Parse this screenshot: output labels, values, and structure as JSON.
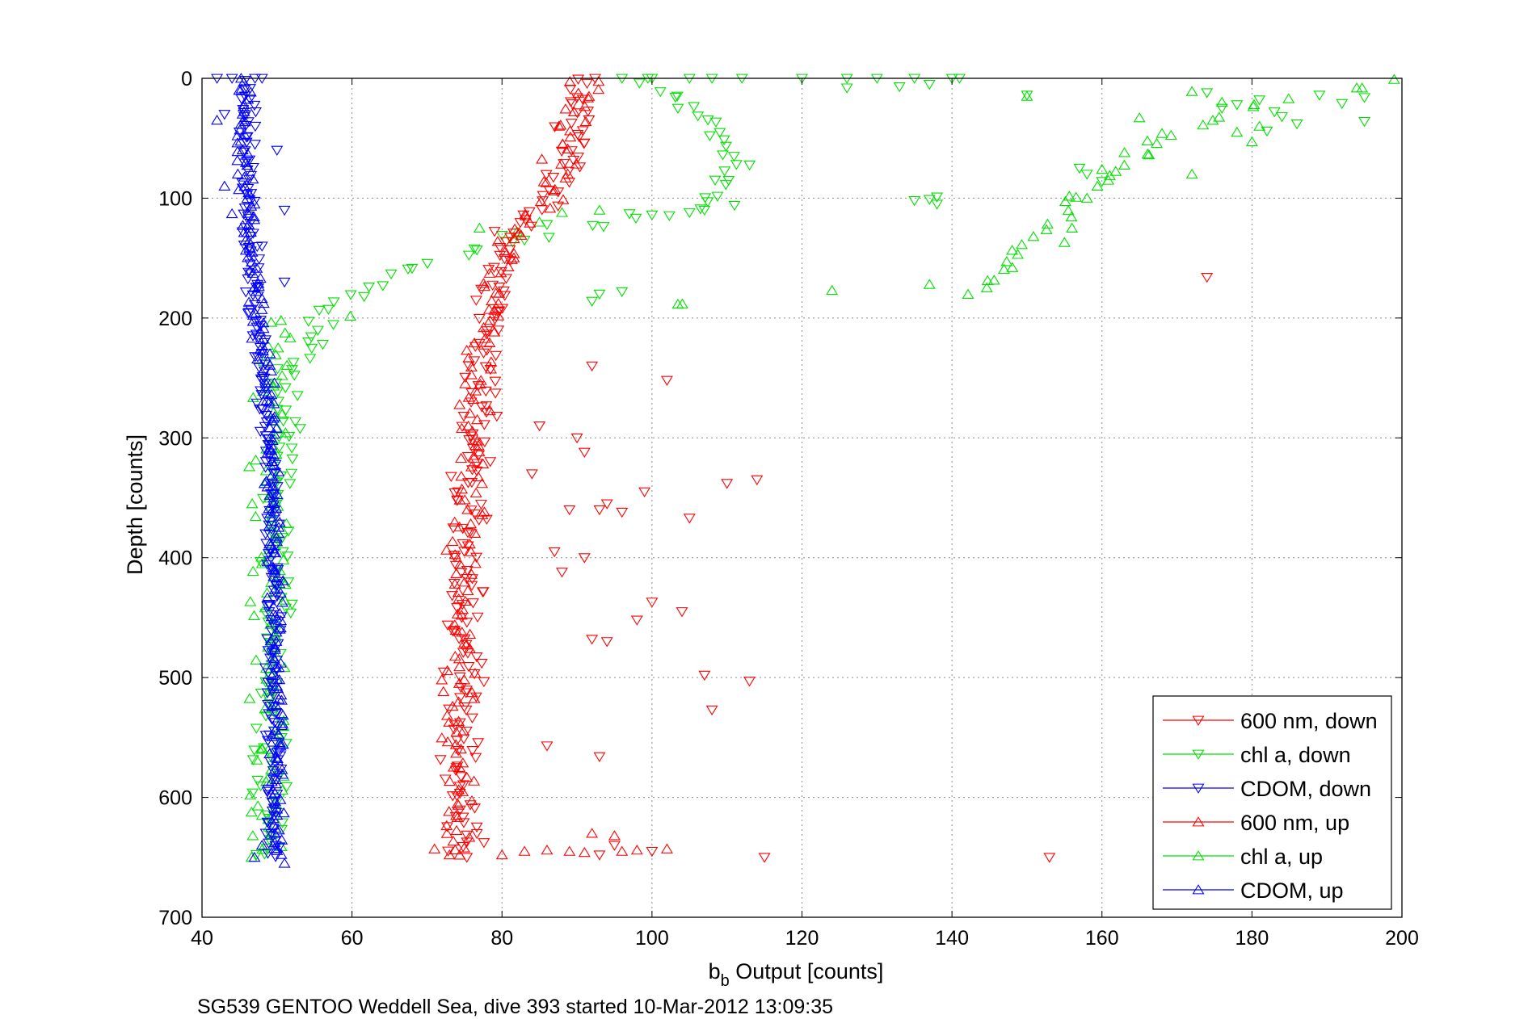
{
  "chart_data": {
    "type": "scatter",
    "title": "",
    "xlabel_main": "b",
    "xlabel_sub": "b",
    "xlabel_rest": " Output [counts]",
    "ylabel": "Depth [counts]",
    "caption": "SG539 GENTOO Weddell Sea, dive 393 started 10-Mar-2012 13:09:35",
    "xlim": [
      40,
      200
    ],
    "ylim": [
      0,
      700
    ],
    "y_reversed": true,
    "x_ticks": [
      40,
      60,
      80,
      100,
      120,
      140,
      160,
      180,
      200
    ],
    "y_ticks": [
      0,
      100,
      200,
      300,
      400,
      500,
      600,
      700
    ],
    "grid": true,
    "legend_position": "bottom-right",
    "colors": {
      "red": "#ff0000",
      "green": "#00e000",
      "blue": "#0000ff"
    },
    "series": [
      {
        "name": "600 nm, down",
        "color": "#ff0000",
        "marker": "triangle-down",
        "profile": [
          [
            0,
            90.5
          ],
          [
            20,
            90
          ],
          [
            50,
            89.5
          ],
          [
            80,
            88
          ],
          [
            100,
            86
          ],
          [
            120,
            82
          ],
          [
            150,
            80
          ],
          [
            200,
            79
          ],
          [
            250,
            77.5
          ],
          [
            300,
            76.5
          ],
          [
            350,
            75.5
          ],
          [
            400,
            75.5
          ],
          [
            450,
            75
          ],
          [
            500,
            75
          ],
          [
            550,
            74.5
          ],
          [
            600,
            75
          ],
          [
            650,
            75
          ]
        ],
        "spread": 2.2,
        "count": 200,
        "outliers": [
          [
            90,
            300
          ],
          [
            91,
            312
          ],
          [
            102,
            252
          ],
          [
            110,
            338
          ],
          [
            114,
            335
          ],
          [
            99,
            345
          ],
          [
            94,
            355
          ],
          [
            96,
            362
          ],
          [
            105,
            367
          ],
          [
            93,
            360
          ],
          [
            91,
            400
          ],
          [
            100,
            437
          ],
          [
            104,
            445
          ],
          [
            98,
            452
          ],
          [
            92,
            468
          ],
          [
            94,
            470
          ],
          [
            107,
            498
          ],
          [
            113,
            503
          ],
          [
            108,
            527
          ],
          [
            93,
            566
          ],
          [
            86,
            557
          ],
          [
            174,
            166
          ],
          [
            115,
            650
          ],
          [
            153,
            650
          ],
          [
            95,
            640
          ],
          [
            93,
            648
          ],
          [
            100,
            645
          ],
          [
            89,
            360
          ],
          [
            88,
            412
          ],
          [
            87,
            395
          ],
          [
            85,
            290
          ],
          [
            84,
            330
          ],
          [
            92,
            240
          ]
        ]
      },
      {
        "name": "chl a, down",
        "color": "#00e000",
        "marker": "triangle-down",
        "profile": [
          [
            0,
            100
          ],
          [
            40,
            108
          ],
          [
            80,
            111
          ],
          [
            100,
            108
          ],
          [
            110,
            105
          ],
          [
            120,
            95
          ],
          [
            140,
            80
          ],
          [
            160,
            68
          ],
          [
            175,
            62
          ],
          [
            190,
            57
          ],
          [
            200,
            56
          ],
          [
            220,
            55
          ],
          [
            240,
            52
          ],
          [
            260,
            51
          ],
          [
            280,
            50.5
          ],
          [
            350,
            50
          ],
          [
            450,
            50
          ],
          [
            550,
            49.5
          ],
          [
            650,
            49
          ]
        ],
        "spread": 2.0,
        "count": 150,
        "outliers": [
          [
            96,
            0
          ],
          [
            100,
            0
          ],
          [
            105,
            0
          ],
          [
            108,
            0
          ],
          [
            112,
            0
          ],
          [
            120,
            0
          ],
          [
            126,
            0
          ],
          [
            130,
            0
          ],
          [
            135,
            0
          ],
          [
            140,
            0
          ],
          [
            141,
            0
          ],
          [
            126,
            8
          ],
          [
            137,
            5
          ],
          [
            133,
            7
          ],
          [
            150,
            14
          ],
          [
            174,
            12
          ],
          [
            189,
            14
          ],
          [
            195,
            16
          ],
          [
            178,
            22
          ],
          [
            181,
            18
          ],
          [
            176,
            25
          ],
          [
            183,
            28
          ],
          [
            192,
            21
          ],
          [
            184,
            32
          ],
          [
            195,
            36
          ],
          [
            186,
            38
          ],
          [
            182,
            44
          ],
          [
            160,
            86
          ],
          [
            157,
            75
          ],
          [
            158,
            80
          ],
          [
            135,
            102
          ],
          [
            137,
            101
          ],
          [
            138,
            105
          ],
          [
            138,
            99
          ],
          [
            111,
            106
          ],
          [
            107,
            110
          ],
          [
            105,
            112
          ],
          [
            97,
            113
          ],
          [
            100,
            114
          ],
          [
            93,
            180
          ],
          [
            96,
            178
          ],
          [
            92,
            186
          ],
          [
            83,
            135
          ],
          [
            80,
            131
          ],
          [
            86,
            122
          ]
        ]
      },
      {
        "name": "CDOM, down",
        "color": "#0000ff",
        "marker": "triangle-down",
        "profile": [
          [
            0,
            46
          ],
          [
            50,
            46
          ],
          [
            100,
            46
          ],
          [
            150,
            46.5
          ],
          [
            200,
            47
          ],
          [
            250,
            48
          ],
          [
            300,
            49
          ],
          [
            400,
            49.5
          ],
          [
            500,
            49.5
          ],
          [
            650,
            49.5
          ]
        ],
        "spread": 0.9,
        "count": 220,
        "outliers": [
          [
            42,
            0
          ],
          [
            44,
            0
          ],
          [
            48,
            0
          ],
          [
            43,
            30
          ],
          [
            50,
            60
          ],
          [
            51,
            110
          ],
          [
            48,
            140
          ],
          [
            51,
            170
          ]
        ]
      },
      {
        "name": "600 nm, up",
        "color": "#ff0000",
        "marker": "triangle-up",
        "profile": [
          [
            0,
            91
          ],
          [
            50,
            89
          ],
          [
            100,
            86
          ],
          [
            130,
            82
          ],
          [
            170,
            79
          ],
          [
            200,
            78
          ],
          [
            250,
            77
          ],
          [
            300,
            76
          ],
          [
            400,
            75
          ],
          [
            500,
            74.5
          ],
          [
            600,
            74
          ],
          [
            650,
            74
          ]
        ],
        "spread": 2.0,
        "count": 170,
        "outliers": [
          [
            71,
            643
          ],
          [
            73,
            648
          ],
          [
            80,
            648
          ],
          [
            83,
            645
          ],
          [
            86,
            644
          ],
          [
            89,
            645
          ],
          [
            91,
            646
          ],
          [
            96,
            645
          ],
          [
            98,
            644
          ],
          [
            102,
            643
          ],
          [
            92,
            630
          ],
          [
            95,
            632
          ]
        ]
      },
      {
        "name": "chl a, up",
        "color": "#00e000",
        "marker": "triangle-up",
        "profile": [
          [
            0,
            200
          ],
          [
            20,
            182
          ],
          [
            40,
            172
          ],
          [
            60,
            166
          ],
          [
            80,
            162
          ],
          [
            90,
            160
          ],
          [
            100,
            157
          ],
          [
            120,
            154
          ],
          [
            140,
            150
          ],
          [
            160,
            146
          ],
          [
            180,
            143
          ],
          [
            200,
            50
          ],
          [
            250,
            49.5
          ],
          [
            350,
            49
          ],
          [
            450,
            49
          ],
          [
            550,
            49
          ],
          [
            650,
            49
          ]
        ],
        "spread": 2.4,
        "count": 130,
        "outliers": [
          [
            124,
            177
          ],
          [
            137,
            172
          ],
          [
            150,
            15
          ],
          [
            172,
            11
          ],
          [
            176,
            20
          ],
          [
            181,
            40
          ],
          [
            178,
            45
          ],
          [
            180,
            53
          ],
          [
            165,
            33
          ],
          [
            168,
            46
          ],
          [
            172,
            80
          ],
          [
            163,
            62
          ],
          [
            160,
            76
          ],
          [
            158,
            100
          ],
          [
            156,
            125
          ],
          [
            155,
            137
          ],
          [
            85,
            120
          ],
          [
            88,
            112
          ],
          [
            93,
            110
          ],
          [
            82,
            128
          ],
          [
            77,
            125
          ],
          [
            48,
            405
          ],
          [
            48,
            560
          ],
          [
            48,
            615
          ]
        ]
      },
      {
        "name": "CDOM, up",
        "color": "#0000ff",
        "marker": "triangle-up",
        "profile": [
          [
            0,
            45.5
          ],
          [
            50,
            45.5
          ],
          [
            100,
            46
          ],
          [
            150,
            46.5
          ],
          [
            200,
            47.5
          ],
          [
            250,
            48.5
          ],
          [
            300,
            49.5
          ],
          [
            400,
            49.5
          ],
          [
            500,
            50
          ],
          [
            650,
            50
          ]
        ],
        "spread": 0.9,
        "count": 200,
        "outliers": [
          [
            42,
            35
          ],
          [
            43,
            90
          ],
          [
            44,
            113
          ],
          [
            48,
            640
          ],
          [
            47,
            650
          ],
          [
            51,
            655
          ]
        ]
      }
    ]
  }
}
